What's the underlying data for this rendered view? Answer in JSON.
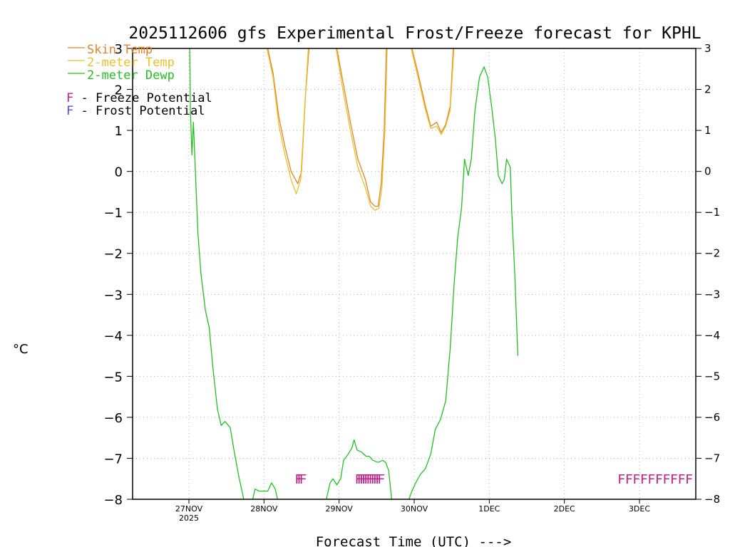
{
  "chart_data": {
    "type": "line",
    "title": "2025112606 gfs Experimental Frost/Freeze forecast for KPHL",
    "xlabel": "Forecast Time (UTC) --->",
    "ylabel": "°C",
    "ylim": [
      -8,
      3
    ],
    "xlim": [
      -0.75,
      6.75
    ],
    "yticks": [
      3,
      2,
      1,
      0,
      -1,
      -2,
      -3,
      -4,
      -5,
      -6,
      -7,
      -8
    ],
    "ytick_labels_left": [
      "3",
      "2",
      "1",
      "0",
      "−1",
      "−2",
      "−3",
      "−4",
      "−5",
      "−6",
      "−7",
      "−8"
    ],
    "ytick_labels_right": [
      "3",
      "2",
      "1",
      "0",
      "−1",
      "−2",
      "−3",
      "−4",
      "−5",
      "−6",
      "−7",
      "−8"
    ],
    "xticks": [
      {
        "x": 0,
        "label": "27NOV",
        "sublabel": "2025"
      },
      {
        "x": 1,
        "label": "28NOV",
        "sublabel": ""
      },
      {
        "x": 2,
        "label": "29NOV",
        "sublabel": ""
      },
      {
        "x": 3,
        "label": "30NOV",
        "sublabel": ""
      },
      {
        "x": 4,
        "label": "1DEC",
        "sublabel": ""
      },
      {
        "x": 5,
        "label": "2DEC",
        "sublabel": ""
      },
      {
        "x": 6,
        "label": "3DEC",
        "sublabel": ""
      }
    ],
    "grid": true,
    "legend": {
      "placement": "top-left",
      "items": [
        {
          "label": "Skin Temp",
          "color": "#e8822a"
        },
        {
          "label": "2-meter Temp",
          "color": "#e8c22a"
        },
        {
          "label": "2-meter Dewp",
          "color": "#1fc21f"
        }
      ],
      "markers": [
        {
          "symbol": "F",
          "text": " - Freeze Potential",
          "color": "#c0208a"
        },
        {
          "symbol": "F",
          "text": " - Frost Potential",
          "color": "#5050e0"
        }
      ]
    },
    "series": [
      {
        "name": "Skin Temp",
        "color": "#e8822a",
        "segments": [
          [
            [
              1.05,
              3.0
            ],
            [
              1.12,
              2.4
            ],
            [
              1.2,
              1.3
            ],
            [
              1.28,
              0.6
            ],
            [
              1.36,
              0.0
            ],
            [
              1.45,
              -0.3
            ],
            [
              1.5,
              0.0
            ],
            [
              1.55,
              1.8
            ],
            [
              1.6,
              3.0
            ]
          ],
          [
            [
              1.97,
              3.0
            ],
            [
              2.05,
              2.2
            ],
            [
              2.15,
              1.2
            ],
            [
              2.25,
              0.3
            ],
            [
              2.35,
              -0.2
            ],
            [
              2.42,
              -0.75
            ],
            [
              2.48,
              -0.85
            ],
            [
              2.52,
              -0.85
            ],
            [
              2.56,
              -0.3
            ],
            [
              2.6,
              1.0
            ],
            [
              2.63,
              3.0
            ]
          ],
          [
            [
              2.97,
              3.0
            ],
            [
              3.05,
              2.4
            ],
            [
              3.15,
              1.6
            ],
            [
              3.22,
              1.1
            ],
            [
              3.3,
              1.2
            ],
            [
              3.36,
              0.95
            ],
            [
              3.42,
              1.15
            ],
            [
              3.48,
              1.6
            ],
            [
              3.52,
              3.0
            ]
          ]
        ]
      },
      {
        "name": "2-meter Temp",
        "color": "#e8c22a",
        "segments": [
          [
            [
              1.04,
              3.0
            ],
            [
              1.12,
              2.3
            ],
            [
              1.2,
              1.1
            ],
            [
              1.28,
              0.4
            ],
            [
              1.36,
              -0.2
            ],
            [
              1.43,
              -0.55
            ],
            [
              1.49,
              -0.2
            ],
            [
              1.54,
              1.5
            ],
            [
              1.59,
              3.0
            ]
          ],
          [
            [
              1.96,
              3.0
            ],
            [
              2.05,
              2.0
            ],
            [
              2.15,
              1.0
            ],
            [
              2.25,
              0.1
            ],
            [
              2.35,
              -0.4
            ],
            [
              2.42,
              -0.85
            ],
            [
              2.48,
              -0.95
            ],
            [
              2.53,
              -0.9
            ],
            [
              2.57,
              -0.4
            ],
            [
              2.61,
              1.0
            ],
            [
              2.64,
              3.0
            ]
          ],
          [
            [
              2.96,
              3.0
            ],
            [
              3.05,
              2.3
            ],
            [
              3.15,
              1.5
            ],
            [
              3.22,
              1.05
            ],
            [
              3.3,
              1.1
            ],
            [
              3.36,
              0.9
            ],
            [
              3.42,
              1.1
            ],
            [
              3.48,
              1.5
            ],
            [
              3.53,
              3.0
            ]
          ]
        ]
      },
      {
        "name": "2-meter Dewp",
        "color": "#1fc21f",
        "segments": [
          [
            [
              0.01,
              3.0
            ],
            [
              0.02,
              1.5
            ],
            [
              0.04,
              0.4
            ],
            [
              0.06,
              1.2
            ],
            [
              0.08,
              0.3
            ],
            [
              0.12,
              -1.5
            ],
            [
              0.16,
              -2.5
            ],
            [
              0.22,
              -3.4
            ],
            [
              0.27,
              -3.8
            ],
            [
              0.32,
              -4.8
            ],
            [
              0.38,
              -5.8
            ],
            [
              0.43,
              -6.2
            ],
            [
              0.48,
              -6.1
            ],
            [
              0.55,
              -6.25
            ],
            [
              0.6,
              -6.8
            ],
            [
              0.66,
              -7.4
            ],
            [
              0.73,
              -8.0
            ]
          ],
          [
            [
              0.85,
              -8.0
            ],
            [
              0.88,
              -7.75
            ],
            [
              0.93,
              -7.8
            ],
            [
              1.0,
              -7.8
            ],
            [
              1.05,
              -7.8
            ],
            [
              1.1,
              -7.6
            ],
            [
              1.15,
              -7.75
            ],
            [
              1.18,
              -8.0
            ]
          ],
          [
            [
              1.83,
              -8.0
            ],
            [
              1.88,
              -7.6
            ],
            [
              1.92,
              -7.5
            ],
            [
              1.97,
              -7.65
            ],
            [
              2.02,
              -7.5
            ],
            [
              2.06,
              -7.05
            ],
            [
              2.12,
              -6.9
            ],
            [
              2.17,
              -6.75
            ],
            [
              2.2,
              -6.55
            ],
            [
              2.24,
              -6.8
            ],
            [
              2.3,
              -6.85
            ],
            [
              2.36,
              -6.95
            ],
            [
              2.4,
              -6.95
            ],
            [
              2.45,
              -7.05
            ],
            [
              2.52,
              -7.1
            ],
            [
              2.58,
              -7.05
            ],
            [
              2.62,
              -7.1
            ],
            [
              2.66,
              -7.3
            ],
            [
              2.7,
              -8.0
            ]
          ],
          [
            [
              2.93,
              -8.0
            ],
            [
              2.97,
              -7.8
            ],
            [
              3.02,
              -7.6
            ],
            [
              3.08,
              -7.4
            ],
            [
              3.15,
              -7.25
            ],
            [
              3.22,
              -6.9
            ],
            [
              3.28,
              -6.3
            ],
            [
              3.35,
              -6.05
            ],
            [
              3.42,
              -5.6
            ],
            [
              3.48,
              -4.3
            ],
            [
              3.53,
              -2.8
            ],
            [
              3.58,
              -1.6
            ],
            [
              3.63,
              -0.9
            ],
            [
              3.67,
              0.3
            ],
            [
              3.72,
              -0.1
            ],
            [
              3.76,
              0.3
            ],
            [
              3.81,
              1.5
            ],
            [
              3.87,
              2.3
            ],
            [
              3.93,
              2.55
            ],
            [
              3.98,
              2.3
            ],
            [
              4.03,
              1.6
            ],
            [
              4.08,
              0.8
            ],
            [
              4.12,
              -0.1
            ],
            [
              4.17,
              -0.3
            ],
            [
              4.2,
              -0.2
            ],
            [
              4.23,
              0.3
            ],
            [
              4.28,
              0.1
            ],
            [
              4.3,
              -1.0
            ],
            [
              4.34,
              -2.5
            ],
            [
              4.38,
              -4.5
            ]
          ]
        ]
      }
    ],
    "freeze_markers": {
      "color": "#c0208a",
      "symbol": "F",
      "y": -7.5,
      "x": [
        1.46,
        1.49,
        1.52,
        2.26,
        2.29,
        2.32,
        2.35,
        2.38,
        2.41,
        2.44,
        2.47,
        2.5,
        2.53,
        2.56,
        5.76,
        5.86,
        5.96,
        6.06,
        6.16,
        6.26,
        6.36,
        6.46,
        6.56,
        6.66
      ]
    }
  }
}
